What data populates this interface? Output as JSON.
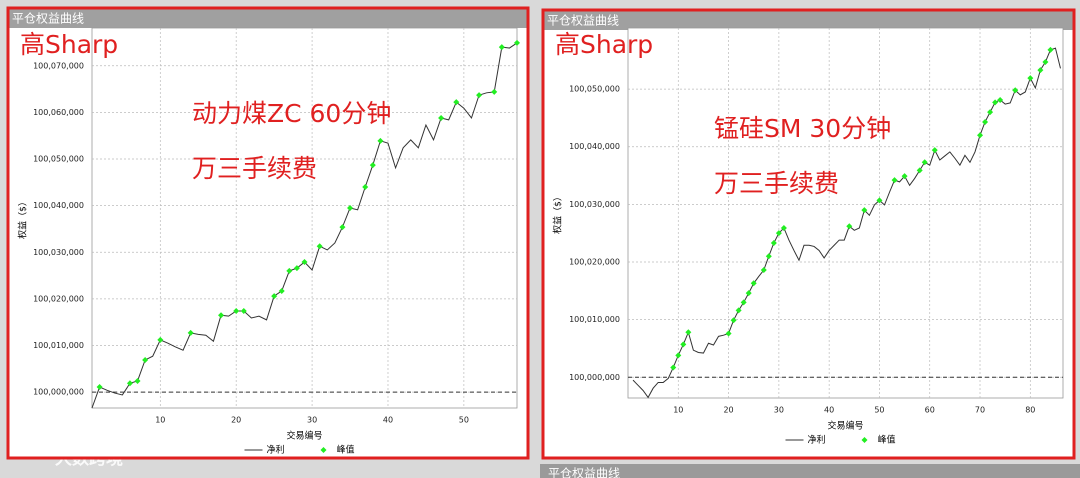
{
  "chart_data": [
    {
      "type": "line",
      "panel_title": "平仓权益曲线",
      "xlabel": "交易编号",
      "ylabel": "权益（$）",
      "annotations": [
        "高Sharp",
        "动力煤ZC 60分钟",
        "万三手续费"
      ],
      "x": [
        1,
        2,
        3,
        4,
        5,
        6,
        7,
        8,
        9,
        10,
        11,
        12,
        13,
        14,
        15,
        16,
        17,
        18,
        19,
        20,
        21,
        22,
        23,
        24,
        25,
        26,
        27,
        28,
        29,
        30,
        31,
        32,
        33,
        34,
        35,
        36,
        37,
        38,
        39,
        40,
        41,
        42,
        43,
        44,
        45,
        46,
        47,
        48,
        49,
        50,
        51,
        52,
        53,
        54,
        55,
        56,
        57
      ],
      "series": [
        {
          "name": "净利",
          "color": "#333333",
          "style": "line",
          "values": [
            99996600,
            100001100,
            100000400,
            99999800,
            99999400,
            100001900,
            100002400,
            100006900,
            100007700,
            100011200,
            100010500,
            100009700,
            100009000,
            100012700,
            100012400,
            100012200,
            100010900,
            100016500,
            100016300,
            100017400,
            100017400,
            100015900,
            100016300,
            100015500,
            100020600,
            100021700,
            100026000,
            100026600,
            100027900,
            100026200,
            100031300,
            100030500,
            100032000,
            100035400,
            100039500,
            100039100,
            100044000,
            100048700,
            100053900,
            100053400,
            100048100,
            100052400,
            100054100,
            100052400,
            100057300,
            100054100,
            100058800,
            100058400,
            100062200,
            100060900,
            100058800,
            100063700,
            100064200,
            100064400,
            100074000,
            100073800,
            100074900
          ]
        },
        {
          "name": "峰值",
          "color": "#22ee22",
          "style": "markers",
          "values": [
            null,
            100001100,
            null,
            null,
            null,
            100001900,
            100002400,
            100006900,
            null,
            100011200,
            null,
            null,
            null,
            100012700,
            null,
            null,
            null,
            100016500,
            null,
            100017400,
            100017400,
            null,
            null,
            null,
            100020600,
            100021700,
            100026000,
            100026600,
            100027900,
            null,
            100031300,
            null,
            null,
            100035400,
            100039500,
            null,
            100044000,
            100048700,
            100053900,
            null,
            null,
            null,
            null,
            null,
            null,
            null,
            100058800,
            null,
            100062200,
            null,
            null,
            100063700,
            null,
            100064400,
            100074000,
            null,
            100074900
          ]
        }
      ],
      "hline": 100000000,
      "xlim": [
        1,
        57
      ],
      "xticks": [
        10,
        20,
        30,
        40,
        50
      ],
      "ylim": [
        99996600,
        100078100
      ],
      "yticks": [
        {
          "value": 100000000,
          "label": "100,000,000"
        },
        {
          "value": 100010000,
          "label": "100,010,000"
        },
        {
          "value": 100020000,
          "label": "100,020,000"
        },
        {
          "value": 100030000,
          "label": "100,030,000"
        },
        {
          "value": 100040000,
          "label": "100,040,000"
        },
        {
          "value": 100050000,
          "label": "100,050,000"
        },
        {
          "value": 100060000,
          "label": "100,060,000"
        },
        {
          "value": 100070000,
          "label": "100,070,000"
        }
      ],
      "grid": true
    },
    {
      "type": "line",
      "panel_title": "平仓权益曲线",
      "xlabel": "交易编号",
      "ylabel": "权益（$）",
      "annotations": [
        "高Sharp",
        "锰硅SM 30分钟",
        "万三手续费"
      ],
      "x": [
        1,
        2,
        3,
        4,
        5,
        6,
        7,
        8,
        9,
        10,
        11,
        12,
        13,
        14,
        15,
        16,
        17,
        18,
        19,
        20,
        21,
        22,
        23,
        24,
        25,
        26,
        27,
        28,
        29,
        30,
        31,
        32,
        33,
        34,
        35,
        36,
        37,
        38,
        39,
        40,
        41,
        42,
        43,
        44,
        45,
        46,
        47,
        48,
        49,
        50,
        51,
        52,
        53,
        54,
        55,
        56,
        57,
        58,
        59,
        60,
        61,
        62,
        63,
        64,
        65,
        66,
        67,
        68,
        69,
        70,
        71,
        72,
        73,
        74,
        75,
        76,
        77,
        78,
        79,
        80,
        81,
        82,
        83,
        84,
        85,
        86
      ],
      "series": [
        {
          "name": "净利",
          "color": "#333333",
          "style": "line",
          "values": [
            99999500,
            99998600,
            99997700,
            99996500,
            99998100,
            99999100,
            99999100,
            99999800,
            100001700,
            100003800,
            100005700,
            100007800,
            100004700,
            100004300,
            100004200,
            100005900,
            100005600,
            100007100,
            100007300,
            100007600,
            100009900,
            100011600,
            100013000,
            100014600,
            100016300,
            100017500,
            100018600,
            100021000,
            100023300,
            100025000,
            100025900,
            100023800,
            100022000,
            100020300,
            100022900,
            100022900,
            100022700,
            100022000,
            100020700,
            100022000,
            100022900,
            100023800,
            100023800,
            100026200,
            100025500,
            100025900,
            100029000,
            100028100,
            100029900,
            100030700,
            100029900,
            100032100,
            100034200,
            100033900,
            100034900,
            100033300,
            100034500,
            100035900,
            100037300,
            100036800,
            100039400,
            100037700,
            100038400,
            100039100,
            100038000,
            100036800,
            100038500,
            100037300,
            100039100,
            100042000,
            100044300,
            100046000,
            100047700,
            100048100,
            100047400,
            100047600,
            100049800,
            100049000,
            100049500,
            100051900,
            100050200,
            100053300,
            100054700,
            100056800,
            100057100,
            100053600
          ]
        },
        {
          "name": "峰值",
          "color": "#22ee22",
          "style": "markers",
          "values": [
            null,
            null,
            null,
            null,
            null,
            null,
            null,
            null,
            100001700,
            100003800,
            100005700,
            100007800,
            null,
            null,
            null,
            null,
            null,
            null,
            null,
            100007600,
            100009900,
            100011600,
            100013000,
            100014600,
            100016300,
            null,
            100018600,
            100021000,
            100023300,
            100025000,
            100025900,
            null,
            null,
            null,
            null,
            null,
            null,
            null,
            null,
            null,
            null,
            null,
            null,
            100026200,
            null,
            null,
            100029000,
            null,
            null,
            100030700,
            null,
            null,
            100034200,
            null,
            100034900,
            null,
            null,
            100035900,
            100037300,
            null,
            100039400,
            null,
            null,
            null,
            null,
            null,
            null,
            null,
            null,
            100042000,
            100044300,
            100046000,
            100047700,
            100048100,
            null,
            null,
            100049800,
            null,
            null,
            100051900,
            null,
            100053300,
            100054700,
            100056800,
            null,
            null
          ]
        }
      ],
      "hline": 100000000,
      "xlim": [
        0,
        86.5
      ],
      "xticks": [
        10,
        20,
        30,
        40,
        50,
        60,
        70,
        80
      ],
      "ylim": [
        99996400,
        100060600
      ],
      "yticks": [
        {
          "value": 100000000,
          "label": "100,000,000"
        },
        {
          "value": 100010000,
          "label": "100,010,000"
        },
        {
          "value": 100020000,
          "label": "100,020,000"
        },
        {
          "value": 100030000,
          "label": "100,030,000"
        },
        {
          "value": 100040000,
          "label": "100,040,000"
        },
        {
          "value": 100050000,
          "label": "100,050,000"
        }
      ],
      "grid": true
    }
  ],
  "footer_title": "平仓权益曲线",
  "watermark": "大数跨境"
}
